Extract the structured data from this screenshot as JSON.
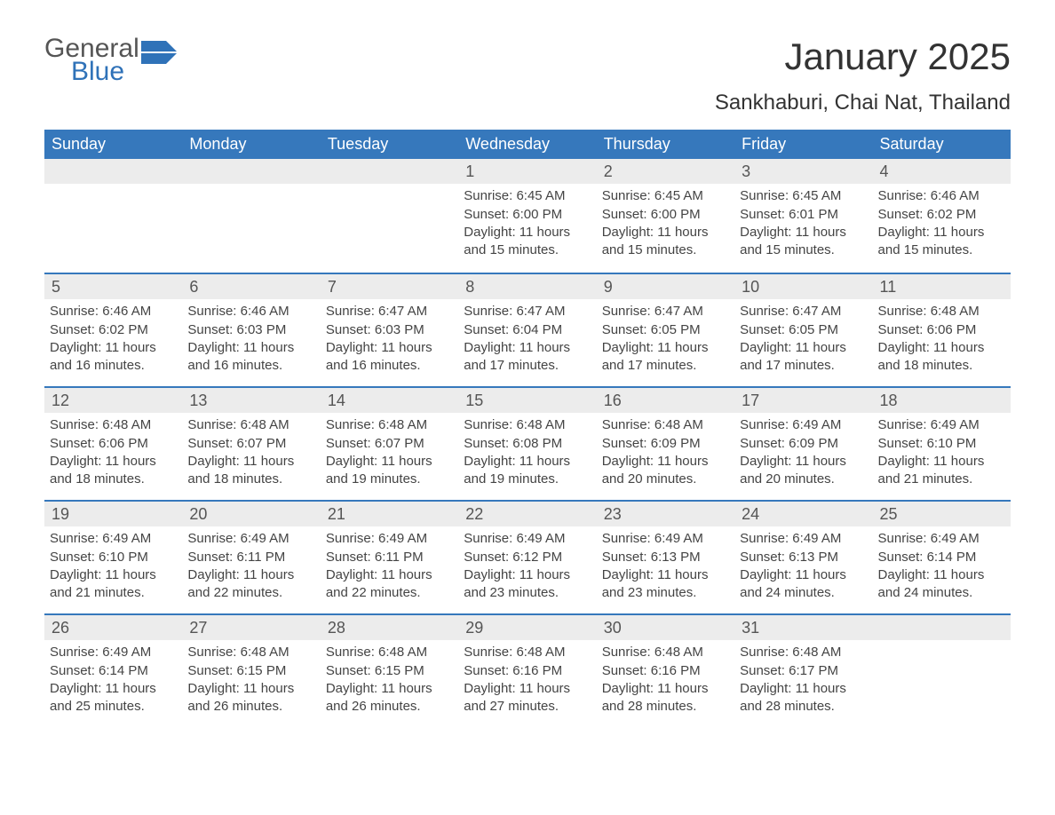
{
  "logo": {
    "text1": "General",
    "text2": "Blue",
    "color1": "#555555",
    "color2": "#2f72b8"
  },
  "title": "January 2025",
  "location": "Sankhaburi, Chai Nat, Thailand",
  "colors": {
    "header_bg": "#3678bc",
    "header_fg": "#ffffff",
    "row_divider": "#3678bc",
    "daynum_bg": "#ececec",
    "text": "#444444",
    "background": "#ffffff"
  },
  "fontsize": {
    "title": 42,
    "subtitle": 24,
    "weekday": 18,
    "daynum": 18,
    "body": 15
  },
  "weekdays": [
    "Sunday",
    "Monday",
    "Tuesday",
    "Wednesday",
    "Thursday",
    "Friday",
    "Saturday"
  ],
  "weeks": [
    [
      null,
      null,
      null,
      {
        "n": "1",
        "sr": "Sunrise: 6:45 AM",
        "ss": "Sunset: 6:00 PM",
        "d1": "Daylight: 11 hours",
        "d2": "and 15 minutes."
      },
      {
        "n": "2",
        "sr": "Sunrise: 6:45 AM",
        "ss": "Sunset: 6:00 PM",
        "d1": "Daylight: 11 hours",
        "d2": "and 15 minutes."
      },
      {
        "n": "3",
        "sr": "Sunrise: 6:45 AM",
        "ss": "Sunset: 6:01 PM",
        "d1": "Daylight: 11 hours",
        "d2": "and 15 minutes."
      },
      {
        "n": "4",
        "sr": "Sunrise: 6:46 AM",
        "ss": "Sunset: 6:02 PM",
        "d1": "Daylight: 11 hours",
        "d2": "and 15 minutes."
      }
    ],
    [
      {
        "n": "5",
        "sr": "Sunrise: 6:46 AM",
        "ss": "Sunset: 6:02 PM",
        "d1": "Daylight: 11 hours",
        "d2": "and 16 minutes."
      },
      {
        "n": "6",
        "sr": "Sunrise: 6:46 AM",
        "ss": "Sunset: 6:03 PM",
        "d1": "Daylight: 11 hours",
        "d2": "and 16 minutes."
      },
      {
        "n": "7",
        "sr": "Sunrise: 6:47 AM",
        "ss": "Sunset: 6:03 PM",
        "d1": "Daylight: 11 hours",
        "d2": "and 16 minutes."
      },
      {
        "n": "8",
        "sr": "Sunrise: 6:47 AM",
        "ss": "Sunset: 6:04 PM",
        "d1": "Daylight: 11 hours",
        "d2": "and 17 minutes."
      },
      {
        "n": "9",
        "sr": "Sunrise: 6:47 AM",
        "ss": "Sunset: 6:05 PM",
        "d1": "Daylight: 11 hours",
        "d2": "and 17 minutes."
      },
      {
        "n": "10",
        "sr": "Sunrise: 6:47 AM",
        "ss": "Sunset: 6:05 PM",
        "d1": "Daylight: 11 hours",
        "d2": "and 17 minutes."
      },
      {
        "n": "11",
        "sr": "Sunrise: 6:48 AM",
        "ss": "Sunset: 6:06 PM",
        "d1": "Daylight: 11 hours",
        "d2": "and 18 minutes."
      }
    ],
    [
      {
        "n": "12",
        "sr": "Sunrise: 6:48 AM",
        "ss": "Sunset: 6:06 PM",
        "d1": "Daylight: 11 hours",
        "d2": "and 18 minutes."
      },
      {
        "n": "13",
        "sr": "Sunrise: 6:48 AM",
        "ss": "Sunset: 6:07 PM",
        "d1": "Daylight: 11 hours",
        "d2": "and 18 minutes."
      },
      {
        "n": "14",
        "sr": "Sunrise: 6:48 AM",
        "ss": "Sunset: 6:07 PM",
        "d1": "Daylight: 11 hours",
        "d2": "and 19 minutes."
      },
      {
        "n": "15",
        "sr": "Sunrise: 6:48 AM",
        "ss": "Sunset: 6:08 PM",
        "d1": "Daylight: 11 hours",
        "d2": "and 19 minutes."
      },
      {
        "n": "16",
        "sr": "Sunrise: 6:48 AM",
        "ss": "Sunset: 6:09 PM",
        "d1": "Daylight: 11 hours",
        "d2": "and 20 minutes."
      },
      {
        "n": "17",
        "sr": "Sunrise: 6:49 AM",
        "ss": "Sunset: 6:09 PM",
        "d1": "Daylight: 11 hours",
        "d2": "and 20 minutes."
      },
      {
        "n": "18",
        "sr": "Sunrise: 6:49 AM",
        "ss": "Sunset: 6:10 PM",
        "d1": "Daylight: 11 hours",
        "d2": "and 21 minutes."
      }
    ],
    [
      {
        "n": "19",
        "sr": "Sunrise: 6:49 AM",
        "ss": "Sunset: 6:10 PM",
        "d1": "Daylight: 11 hours",
        "d2": "and 21 minutes."
      },
      {
        "n": "20",
        "sr": "Sunrise: 6:49 AM",
        "ss": "Sunset: 6:11 PM",
        "d1": "Daylight: 11 hours",
        "d2": "and 22 minutes."
      },
      {
        "n": "21",
        "sr": "Sunrise: 6:49 AM",
        "ss": "Sunset: 6:11 PM",
        "d1": "Daylight: 11 hours",
        "d2": "and 22 minutes."
      },
      {
        "n": "22",
        "sr": "Sunrise: 6:49 AM",
        "ss": "Sunset: 6:12 PM",
        "d1": "Daylight: 11 hours",
        "d2": "and 23 minutes."
      },
      {
        "n": "23",
        "sr": "Sunrise: 6:49 AM",
        "ss": "Sunset: 6:13 PM",
        "d1": "Daylight: 11 hours",
        "d2": "and 23 minutes."
      },
      {
        "n": "24",
        "sr": "Sunrise: 6:49 AM",
        "ss": "Sunset: 6:13 PM",
        "d1": "Daylight: 11 hours",
        "d2": "and 24 minutes."
      },
      {
        "n": "25",
        "sr": "Sunrise: 6:49 AM",
        "ss": "Sunset: 6:14 PM",
        "d1": "Daylight: 11 hours",
        "d2": "and 24 minutes."
      }
    ],
    [
      {
        "n": "26",
        "sr": "Sunrise: 6:49 AM",
        "ss": "Sunset: 6:14 PM",
        "d1": "Daylight: 11 hours",
        "d2": "and 25 minutes."
      },
      {
        "n": "27",
        "sr": "Sunrise: 6:48 AM",
        "ss": "Sunset: 6:15 PM",
        "d1": "Daylight: 11 hours",
        "d2": "and 26 minutes."
      },
      {
        "n": "28",
        "sr": "Sunrise: 6:48 AM",
        "ss": "Sunset: 6:15 PM",
        "d1": "Daylight: 11 hours",
        "d2": "and 26 minutes."
      },
      {
        "n": "29",
        "sr": "Sunrise: 6:48 AM",
        "ss": "Sunset: 6:16 PM",
        "d1": "Daylight: 11 hours",
        "d2": "and 27 minutes."
      },
      {
        "n": "30",
        "sr": "Sunrise: 6:48 AM",
        "ss": "Sunset: 6:16 PM",
        "d1": "Daylight: 11 hours",
        "d2": "and 28 minutes."
      },
      {
        "n": "31",
        "sr": "Sunrise: 6:48 AM",
        "ss": "Sunset: 6:17 PM",
        "d1": "Daylight: 11 hours",
        "d2": "and 28 minutes."
      },
      null
    ]
  ]
}
